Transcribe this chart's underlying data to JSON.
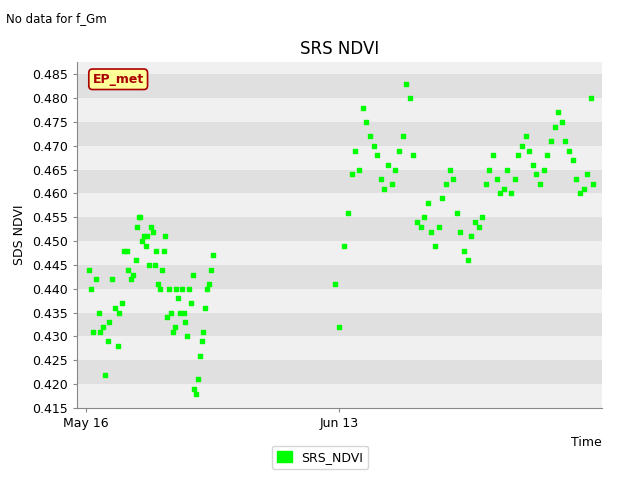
{
  "title": "SRS NDVI",
  "no_data_text": "No data for f_Gm",
  "xlabel": "Time",
  "ylabel": "SDS NDVI",
  "ylim": [
    0.415,
    0.4875
  ],
  "yticks": [
    0.415,
    0.42,
    0.425,
    0.43,
    0.435,
    0.44,
    0.445,
    0.45,
    0.455,
    0.46,
    0.465,
    0.47,
    0.475,
    0.48,
    0.485
  ],
  "xtick_labels": [
    "May 16",
    "Jun 13"
  ],
  "xtick_pos": [
    0,
    28
  ],
  "xlim": [
    -1,
    57
  ],
  "ep_met_label": "EP_met",
  "legend_label": "SRS_NDVI",
  "marker_color": "#00ff00",
  "bg_light": "#f0f0f0",
  "bg_dark": "#e0e0e0",
  "ep_met_bg": "#ffff99",
  "ep_met_border": "#aa0000",
  "title_fontsize": 12,
  "axis_fontsize": 9,
  "tick_fontsize": 9,
  "scatter_s": 12,
  "scatter1_x": [
    0.3,
    0.6,
    0.8,
    1.1,
    1.4,
    1.6,
    1.9,
    2.1,
    2.4,
    2.6,
    2.9,
    3.2,
    3.5,
    3.7,
    4.0,
    4.2,
    4.5,
    4.7,
    5.0,
    5.2,
    5.5,
    5.7,
    5.9,
    6.0,
    6.2,
    6.4,
    6.6,
    6.8,
    7.0,
    7.2,
    7.4,
    7.6,
    7.8,
    8.0,
    8.2,
    8.4,
    8.6,
    8.8,
    9.0,
    9.2,
    9.4,
    9.6,
    9.8,
    10.0,
    10.2,
    10.4,
    10.6,
    10.8,
    11.0,
    11.2,
    11.4,
    11.6,
    11.8,
    12.0,
    12.2,
    12.4,
    12.6,
    12.8,
    13.0,
    13.2,
    13.4,
    13.6,
    13.8,
    14.0
  ],
  "scatter1_y": [
    0.444,
    0.44,
    0.431,
    0.442,
    0.435,
    0.431,
    0.432,
    0.422,
    0.429,
    0.433,
    0.442,
    0.436,
    0.428,
    0.435,
    0.437,
    0.448,
    0.448,
    0.444,
    0.442,
    0.443,
    0.446,
    0.453,
    0.455,
    0.455,
    0.45,
    0.451,
    0.449,
    0.451,
    0.445,
    0.453,
    0.452,
    0.445,
    0.448,
    0.441,
    0.44,
    0.444,
    0.448,
    0.451,
    0.434,
    0.44,
    0.435,
    0.431,
    0.432,
    0.44,
    0.438,
    0.435,
    0.44,
    0.435,
    0.433,
    0.43,
    0.44,
    0.437,
    0.443,
    0.419,
    0.418,
    0.421,
    0.426,
    0.429,
    0.431,
    0.436,
    0.44,
    0.441,
    0.444,
    0.447
  ],
  "scatter2_x": [
    27.5,
    28.0,
    28.5,
    29.0,
    29.4,
    29.8,
    30.2,
    30.6,
    31.0,
    31.4,
    31.8,
    32.2,
    32.6,
    33.0,
    33.4,
    33.8,
    34.2,
    34.6,
    35.0,
    35.4,
    35.8,
    36.2,
    36.6,
    37.0,
    37.4,
    37.8,
    38.2,
    38.6,
    39.0,
    39.4,
    39.8,
    40.2,
    40.6,
    41.0,
    41.4,
    41.8,
    42.2,
    42.6,
    43.0,
    43.4,
    43.8,
    44.2,
    44.6,
    45.0,
    45.4,
    45.8,
    46.2,
    46.6,
    47.0,
    47.4,
    47.8,
    48.2,
    48.6,
    49.0,
    49.4,
    49.8,
    50.2,
    50.6,
    51.0,
    51.4,
    51.8,
    52.2,
    52.6,
    53.0,
    53.4,
    53.8,
    54.2,
    54.6,
    55.0,
    55.4,
    55.8,
    56.0
  ],
  "scatter2_y": [
    0.441,
    0.432,
    0.449,
    0.456,
    0.464,
    0.469,
    0.465,
    0.478,
    0.475,
    0.472,
    0.47,
    0.468,
    0.463,
    0.461,
    0.466,
    0.462,
    0.465,
    0.469,
    0.472,
    0.483,
    0.48,
    0.468,
    0.454,
    0.453,
    0.455,
    0.458,
    0.452,
    0.449,
    0.453,
    0.459,
    0.462,
    0.465,
    0.463,
    0.456,
    0.452,
    0.448,
    0.446,
    0.451,
    0.454,
    0.453,
    0.455,
    0.462,
    0.465,
    0.468,
    0.463,
    0.46,
    0.461,
    0.465,
    0.46,
    0.463,
    0.468,
    0.47,
    0.472,
    0.469,
    0.466,
    0.464,
    0.462,
    0.465,
    0.468,
    0.471,
    0.474,
    0.477,
    0.475,
    0.471,
    0.469,
    0.467,
    0.463,
    0.46,
    0.461,
    0.464,
    0.48,
    0.462
  ]
}
